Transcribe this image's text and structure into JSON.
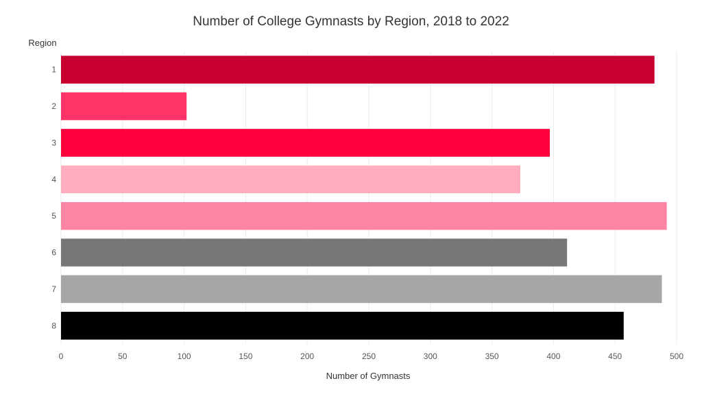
{
  "chart_data": {
    "type": "bar",
    "orientation": "horizontal",
    "title": "Number of College Gymnasts by Region, 2018 to 2022",
    "xlabel": "Number of Gymnasts",
    "ylabel": "Region",
    "xlim": [
      0,
      500
    ],
    "xticks": [
      "0",
      "50",
      "100",
      "150",
      "200",
      "250",
      "300",
      "350",
      "400",
      "450",
      "500"
    ],
    "grid": "vertical",
    "categories": [
      "1",
      "2",
      "3",
      "4",
      "5",
      "6",
      "7",
      "8"
    ],
    "values": [
      482,
      102,
      397,
      373,
      492,
      411,
      488,
      457
    ],
    "colors": [
      "#c8002f",
      "#ff3366",
      "#ff003d",
      "#ffadbf",
      "#ff85a4",
      "#777777",
      "#a6a6a6",
      "#000000"
    ]
  }
}
